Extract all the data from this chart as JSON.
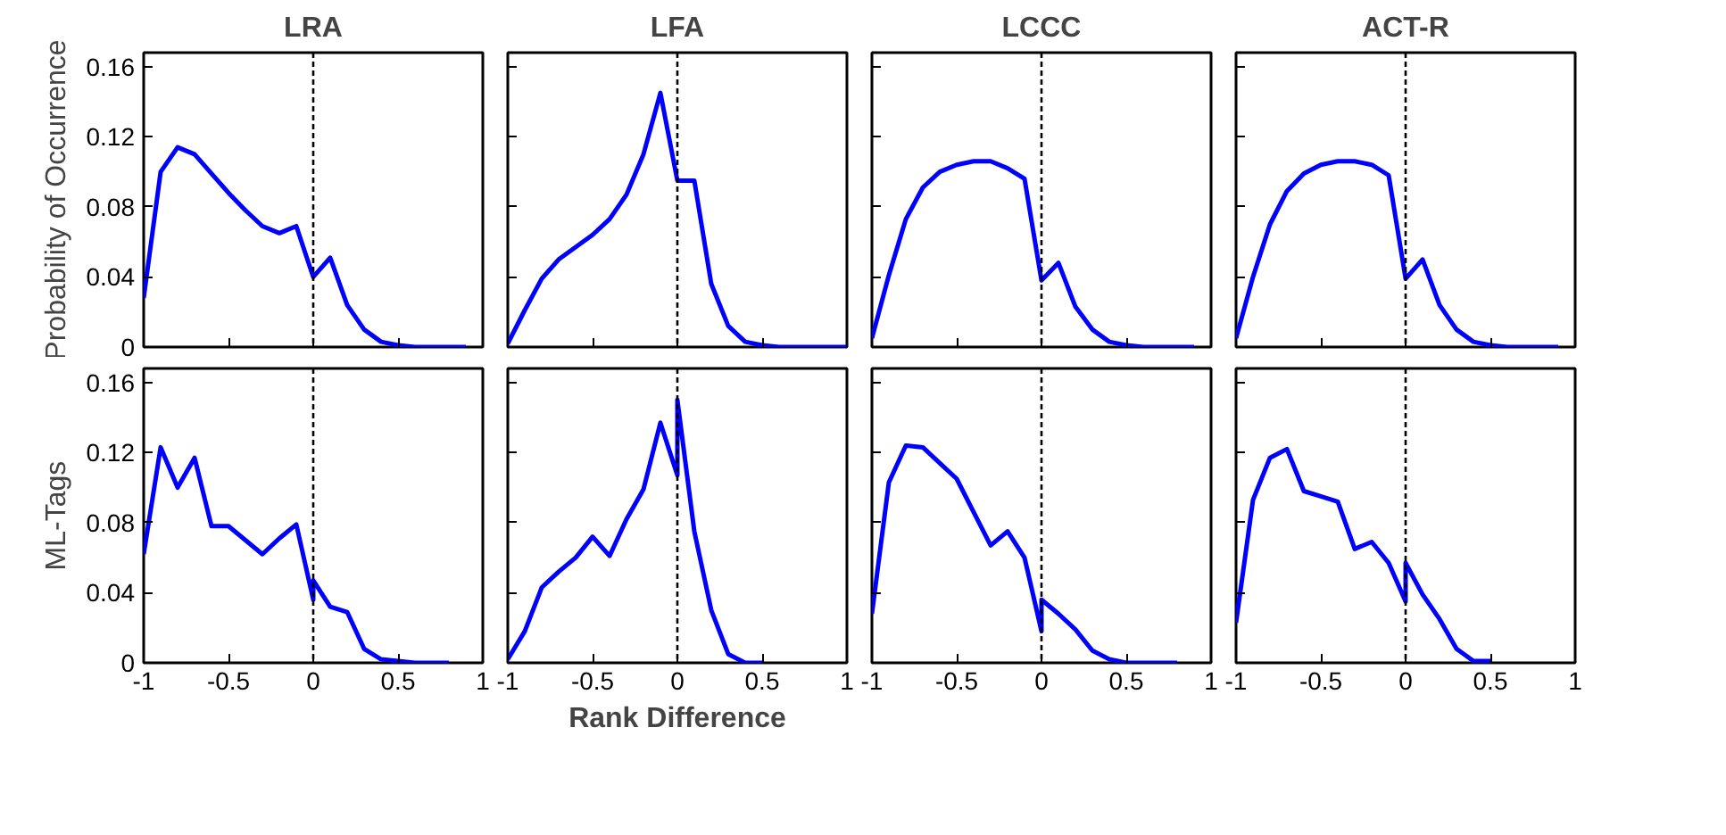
{
  "chart_data": [
    {
      "type": "line",
      "title": "LRA",
      "ylabel": "Probability of Occurrence",
      "tick_labels": "y",
      "xlim": [
        -1,
        1
      ],
      "ylim": [
        0,
        0.168
      ],
      "xticks": [
        -1,
        -0.5,
        0,
        0.5,
        1
      ],
      "yticks": [
        0,
        0.04,
        0.08,
        0.12,
        0.16
      ],
      "grid": false,
      "ref_lines": [
        {
          "axis": "x",
          "value": 0,
          "color": "#000000",
          "line_style": "dashed"
        }
      ],
      "series": [
        {
          "color": "#0000ff",
          "x": [
            -1,
            -0.9,
            -0.8,
            -0.7,
            -0.6,
            -0.5,
            -0.4,
            -0.3,
            -0.2,
            -0.1,
            0,
            0.1,
            0.2,
            0.3,
            0.4,
            0.5,
            0.6,
            0.7,
            0.8,
            0.9
          ],
          "values": [
            0.028,
            0.1,
            0.114,
            0.11,
            0.099,
            0.088,
            0.078,
            0.069,
            0.065,
            0.069,
            0.04,
            0.051,
            0.024,
            0.01,
            0.003,
            0.001,
            0,
            0,
            0,
            0
          ]
        }
      ]
    },
    {
      "type": "line",
      "title": "LFA",
      "tick_labels": false,
      "xlim": [
        -1,
        1
      ],
      "ylim": [
        0,
        0.168
      ],
      "xticks": [
        -1,
        -0.5,
        0,
        0.5,
        1
      ],
      "yticks": [
        0,
        0.04,
        0.08,
        0.12,
        0.16
      ],
      "grid": false,
      "ref_lines": [
        {
          "axis": "x",
          "value": 0,
          "color": "#000000",
          "line_style": "dashed"
        }
      ],
      "series": [
        {
          "color": "#0000ff",
          "x": [
            -1,
            -0.9,
            -0.8,
            -0.7,
            -0.6,
            -0.5,
            -0.4,
            -0.3,
            -0.2,
            -0.1,
            0,
            0.1,
            0.2,
            0.3,
            0.4,
            0.5,
            0.6,
            0.7,
            0.8,
            0.9,
            1
          ],
          "values": [
            0.002,
            0.021,
            0.039,
            0.05,
            0.057,
            0.064,
            0.073,
            0.087,
            0.11,
            0.145,
            0.095,
            0.095,
            0.036,
            0.012,
            0.003,
            0.001,
            0,
            0,
            0,
            0,
            0
          ]
        }
      ]
    },
    {
      "type": "line",
      "title": "LCCC",
      "tick_labels": false,
      "xlim": [
        -1,
        1
      ],
      "ylim": [
        0,
        0.168
      ],
      "xticks": [
        -1,
        -0.5,
        0,
        0.5,
        1
      ],
      "yticks": [
        0,
        0.04,
        0.08,
        0.12,
        0.16
      ],
      "grid": false,
      "ref_lines": [
        {
          "axis": "x",
          "value": 0,
          "color": "#000000",
          "line_style": "dashed"
        }
      ],
      "series": [
        {
          "color": "#0000ff",
          "x": [
            -1,
            -0.9,
            -0.8,
            -0.7,
            -0.6,
            -0.5,
            -0.4,
            -0.3,
            -0.2,
            -0.1,
            0,
            0.1,
            0.2,
            0.3,
            0.4,
            0.5,
            0.6,
            0.7,
            0.8,
            0.9
          ],
          "values": [
            0.005,
            0.041,
            0.073,
            0.091,
            0.1,
            0.104,
            0.106,
            0.106,
            0.102,
            0.096,
            0.038,
            0.048,
            0.023,
            0.01,
            0.003,
            0.001,
            0,
            0,
            0,
            0
          ]
        }
      ]
    },
    {
      "type": "line",
      "title": "ACT-R",
      "tick_labels": false,
      "xlim": [
        -1,
        1
      ],
      "ylim": [
        0,
        0.168
      ],
      "xticks": [
        -1,
        -0.5,
        0,
        0.5,
        1
      ],
      "yticks": [
        0,
        0.04,
        0.08,
        0.12,
        0.16
      ],
      "grid": false,
      "ref_lines": [
        {
          "axis": "x",
          "value": 0,
          "color": "#000000",
          "line_style": "dashed"
        }
      ],
      "series": [
        {
          "color": "#0000ff",
          "x": [
            -1,
            -0.9,
            -0.8,
            -0.7,
            -0.6,
            -0.5,
            -0.4,
            -0.3,
            -0.2,
            -0.1,
            0,
            0.1,
            0.2,
            0.3,
            0.4,
            0.5,
            0.6,
            0.7,
            0.8,
            0.9
          ],
          "values": [
            0.005,
            0.04,
            0.07,
            0.089,
            0.099,
            0.104,
            0.106,
            0.106,
            0.104,
            0.098,
            0.039,
            0.05,
            0.024,
            0.01,
            0.003,
            0.001,
            0,
            0,
            0,
            0
          ]
        }
      ]
    },
    {
      "type": "line",
      "ylabel": "ML-Tags",
      "xlim": [
        -1,
        1
      ],
      "ylim": [
        0,
        0.168
      ],
      "xticks": [
        -1,
        -0.5,
        0,
        0.5,
        1
      ],
      "yticks": [
        0,
        0.04,
        0.08,
        0.12,
        0.16
      ],
      "grid": false,
      "ref_lines": [
        {
          "axis": "x",
          "value": 0,
          "color": "#000000",
          "line_style": "dashed"
        }
      ],
      "series": [
        {
          "color": "#0000ff",
          "x": [
            -1,
            -0.9,
            -0.8,
            -0.7,
            -0.6,
            -0.5,
            -0.4,
            -0.3,
            -0.2,
            -0.1,
            0,
            0,
            0.1,
            0.2,
            0.3,
            0.4,
            0.5,
            0.6,
            0.7,
            0.8
          ],
          "values": [
            0.062,
            0.123,
            0.1,
            0.117,
            0.078,
            0.078,
            0.07,
            0.062,
            0.071,
            0.079,
            0.036,
            0.047,
            0.032,
            0.029,
            0.008,
            0.002,
            0.001,
            0,
            0,
            0
          ]
        }
      ]
    },
    {
      "type": "line",
      "xlabel": "Rank Difference",
      "tick_labels": "x",
      "xlim": [
        -1,
        1
      ],
      "ylim": [
        0,
        0.168
      ],
      "xticks": [
        -1,
        -0.5,
        0,
        0.5,
        1
      ],
      "yticks": [
        0,
        0.04,
        0.08,
        0.12,
        0.16
      ],
      "grid": false,
      "ref_lines": [
        {
          "axis": "x",
          "value": 0,
          "color": "#000000",
          "line_style": "dashed"
        }
      ],
      "series": [
        {
          "color": "#0000ff",
          "x": [
            -1,
            -0.9,
            -0.8,
            -0.7,
            -0.6,
            -0.5,
            -0.4,
            -0.3,
            -0.2,
            -0.1,
            0,
            0,
            0.1,
            0.2,
            0.3,
            0.4,
            0.5
          ],
          "values": [
            0.002,
            0.018,
            0.043,
            0.052,
            0.06,
            0.072,
            0.061,
            0.082,
            0.099,
            0.137,
            0.107,
            0.15,
            0.075,
            0.03,
            0.005,
            0,
            0
          ]
        }
      ]
    },
    {
      "type": "line",
      "tick_labels": "x",
      "xlim": [
        -1,
        1
      ],
      "ylim": [
        0,
        0.168
      ],
      "xticks": [
        -1,
        -0.5,
        0,
        0.5,
        1
      ],
      "yticks": [
        0,
        0.04,
        0.08,
        0.12,
        0.16
      ],
      "grid": false,
      "ref_lines": [
        {
          "axis": "x",
          "value": 0,
          "color": "#000000",
          "line_style": "dashed"
        }
      ],
      "series": [
        {
          "color": "#0000ff",
          "x": [
            -1,
            -0.9,
            -0.8,
            -0.7,
            -0.6,
            -0.5,
            -0.4,
            -0.3,
            -0.2,
            -0.1,
            0,
            0,
            0.1,
            0.2,
            0.3,
            0.4,
            0.5,
            0.6,
            0.7,
            0.8
          ],
          "values": [
            0.028,
            0.103,
            0.124,
            0.123,
            0.114,
            0.105,
            0.086,
            0.067,
            0.075,
            0.06,
            0.018,
            0.036,
            0.028,
            0.019,
            0.007,
            0.002,
            0,
            0,
            0,
            0
          ]
        }
      ]
    },
    {
      "type": "line",
      "tick_labels": "x",
      "xlim": [
        -1,
        1
      ],
      "ylim": [
        0,
        0.168
      ],
      "xticks": [
        -1,
        -0.5,
        0,
        0.5,
        1
      ],
      "yticks": [
        0,
        0.04,
        0.08,
        0.12,
        0.16
      ],
      "grid": false,
      "ref_lines": [
        {
          "axis": "x",
          "value": 0,
          "color": "#000000",
          "line_style": "dashed"
        }
      ],
      "series": [
        {
          "color": "#0000ff",
          "x": [
            -1,
            -0.9,
            -0.8,
            -0.7,
            -0.6,
            -0.5,
            -0.4,
            -0.3,
            -0.2,
            -0.1,
            0,
            0,
            0.1,
            0.2,
            0.3,
            0.4,
            0.5
          ],
          "values": [
            0.023,
            0.093,
            0.117,
            0.122,
            0.098,
            0.095,
            0.092,
            0.065,
            0.069,
            0.057,
            0.035,
            0.057,
            0.039,
            0.025,
            0.008,
            0.001,
            0.001
          ]
        }
      ]
    }
  ]
}
